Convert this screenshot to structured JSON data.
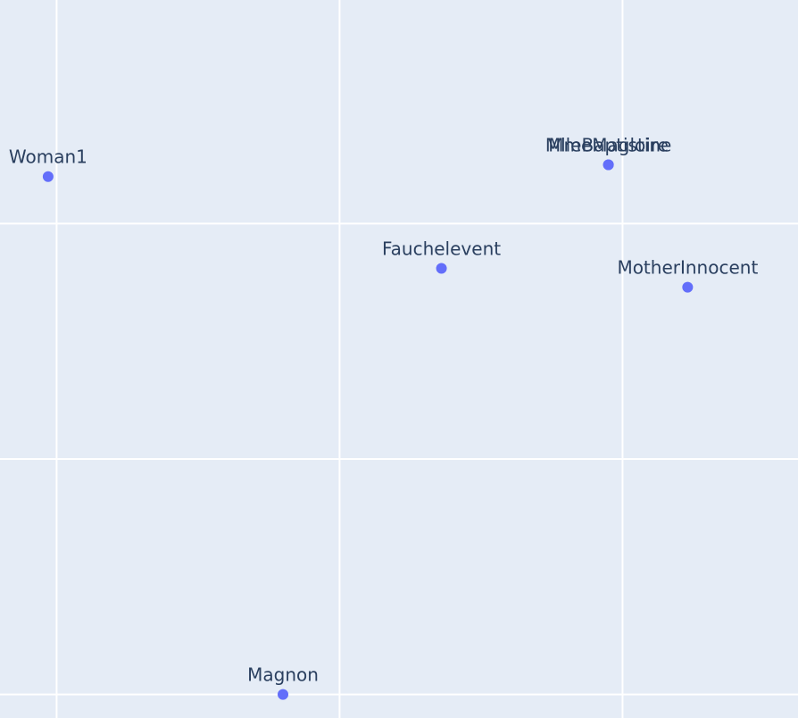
{
  "chart_data": {
    "type": "scatter",
    "title": "",
    "xlabel": "",
    "ylabel": "",
    "grid": true,
    "xlim": [
      -0.2,
      2.62
    ],
    "ylim": [
      -2.1,
      0.95
    ],
    "points": [
      {
        "label": "Woman1",
        "x": -0.03,
        "y": 0.2
      },
      {
        "label": "MlleBaptistine",
        "x": 1.95,
        "y": 0.25
      },
      {
        "label": "MmeMagloire",
        "x": 1.95,
        "y": 0.25
      },
      {
        "label": "Fauchelevent",
        "x": 1.36,
        "y": -0.19
      },
      {
        "label": "MotherInnocent",
        "x": 2.23,
        "y": -0.27
      },
      {
        "label": "Magnon",
        "x": 0.8,
        "y": -2.0
      }
    ]
  },
  "colors": {
    "background": "#e5ecf6",
    "grid": "#ffffff",
    "marker": "#636efa",
    "text": "#2a3f5f"
  }
}
